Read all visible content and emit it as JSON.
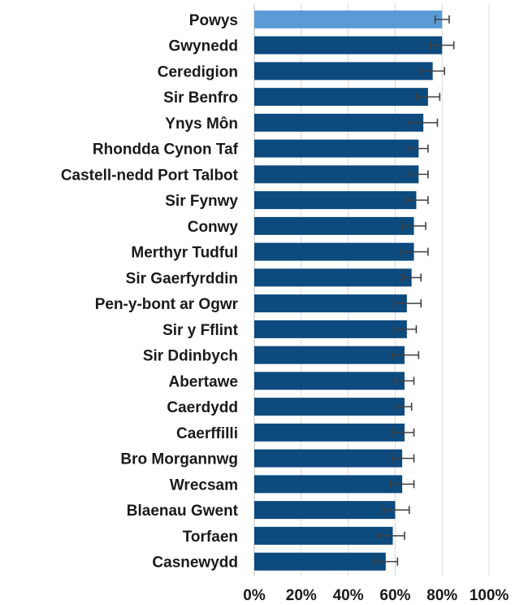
{
  "chart_data": {
    "type": "bar",
    "orientation": "horizontal",
    "categories": [
      "Powys",
      "Gwynedd",
      "Ceredigion",
      "Sir Benfro",
      "Ynys Môn",
      "Rhondda Cynon Taf",
      "Castell-nedd Port Talbot",
      "Sir Fynwy",
      "Conwy",
      "Merthyr Tudful",
      "Sir Gaerfyrddin",
      "Pen-y-bont ar Ogwr",
      "Sir y Fflint",
      "Sir Ddinbych",
      "Abertawe",
      "Caerdydd",
      "Caerffilli",
      "Bro Morgannwg",
      "Wrecsam",
      "Blaenau Gwent",
      "Torfaen",
      "Casnewydd"
    ],
    "values": [
      80,
      80,
      76,
      74,
      72,
      70,
      70,
      69,
      68,
      68,
      67,
      65,
      65,
      64,
      64,
      64,
      64,
      63,
      63,
      60,
      59,
      56
    ],
    "error_low": [
      77,
      75,
      71,
      69,
      66,
      66,
      66,
      65,
      63,
      62,
      63,
      60,
      60,
      59,
      60,
      61,
      59,
      59,
      58,
      55,
      53,
      51
    ],
    "error_high": [
      83,
      85,
      81,
      79,
      78,
      74,
      74,
      74,
      73,
      74,
      71,
      71,
      69,
      70,
      68,
      67,
      68,
      68,
      68,
      66,
      64,
      61
    ],
    "highlight_index": 0,
    "xlim": [
      0,
      100
    ],
    "x_ticks": [
      0,
      20,
      40,
      60,
      80,
      100
    ],
    "tick_labels": [
      "0%",
      "20%",
      "40%",
      "60%",
      "80%",
      "100%"
    ],
    "grid": true,
    "colors": {
      "bar": "#0d4a7d",
      "highlight": "#5b9bd5",
      "error_bar": "#404040",
      "grid": "#d9d9d9"
    }
  }
}
